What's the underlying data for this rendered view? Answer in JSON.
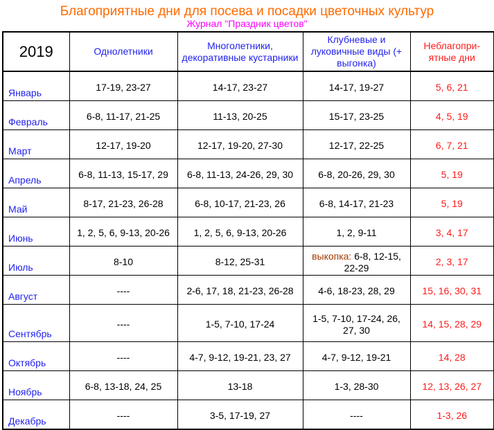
{
  "title": "Благоприятные дни для посева и посадки цветочных культур",
  "subtitle": "Журнал \"Праздник цветов\"",
  "header": {
    "year": "2019",
    "col1": "Однолетники",
    "col2": "Многолетники, декоративные кустарники",
    "col3": "Клубневые и луковичные виды (+ выгонка)",
    "col4": "Неблагопри-ятные дни"
  },
  "colors": {
    "title": "#ff6a00",
    "subtitle": "#ff00ff",
    "month": "#2222ee",
    "unfavorable": "#ff1a1a"
  },
  "rows": [
    {
      "month": "Январь",
      "annuals": "17-19, 23-27",
      "perennials": "14-17, 23-27",
      "bulbs": "14-17, 19-27",
      "bad": "5, 6, 21"
    },
    {
      "month": "Февраль",
      "annuals": "6-8, 11-17, 21-25",
      "perennials": "11-13, 20-25",
      "bulbs": "15-17, 23-25",
      "bad": "4, 5, 19"
    },
    {
      "month": "Март",
      "annuals": "12-17, 19-20",
      "perennials": "12-17, 19-20, 27-30",
      "bulbs": "12-17, 22-25",
      "bad": "6, 7, 21"
    },
    {
      "month": "Апрель",
      "annuals": "6-8, 11-13, 15-17, 29",
      "perennials": "6-8, 11-13, 24-26, 29, 30",
      "bulbs": "6-8, 20-26, 29, 30",
      "bad": "5, 19"
    },
    {
      "month": "Май",
      "annuals": "8-17, 21-23, 26-28",
      "perennials": "6-8, 10-17, 21-23, 26",
      "bulbs": "6-8, 14-17, 21-23",
      "bad": "5, 19"
    },
    {
      "month": "Июнь",
      "annuals": "1, 2, 5, 6, 9-13, 20-26",
      "perennials": "1, 2, 5, 6, 9-13, 20-26",
      "bulbs": "1, 2, 9-11",
      "bad": "3, 4, 17"
    },
    {
      "month": "Июль",
      "annuals": "8-10",
      "perennials": "8-12, 25-31",
      "bulbs_note": "выкопка:",
      "bulbs": "6-8, 12-15, 22-29",
      "bad": "2, 3, 17"
    },
    {
      "month": "Август",
      "annuals": "----",
      "perennials": "2-6, 17, 18, 21-23, 26-28",
      "bulbs": "4-6, 18-23, 28, 29",
      "bad": "15, 16, 30, 31"
    },
    {
      "month": "Сентябрь",
      "annuals": "----",
      "perennials": "1-5, 7-10, 17-24",
      "bulbs": "1-5, 7-10, 17-24, 26, 27, 30",
      "bad": "14, 15, 28, 29"
    },
    {
      "month": "Октябрь",
      "annuals": "----",
      "perennials": "4-7, 9-12, 19-21, 23, 27",
      "bulbs": "4-7, 9-12, 19-21",
      "bad": "14, 28"
    },
    {
      "month": "Ноябрь",
      "annuals": "6-8, 13-18, 24, 25",
      "perennials": "13-18",
      "bulbs": "1-3, 28-30",
      "bad": "12, 13, 26, 27"
    },
    {
      "month": "Декабрь",
      "annuals": "----",
      "perennials": "3-5, 17-19, 27",
      "bulbs": "----",
      "bad": "1-3, 26"
    }
  ]
}
